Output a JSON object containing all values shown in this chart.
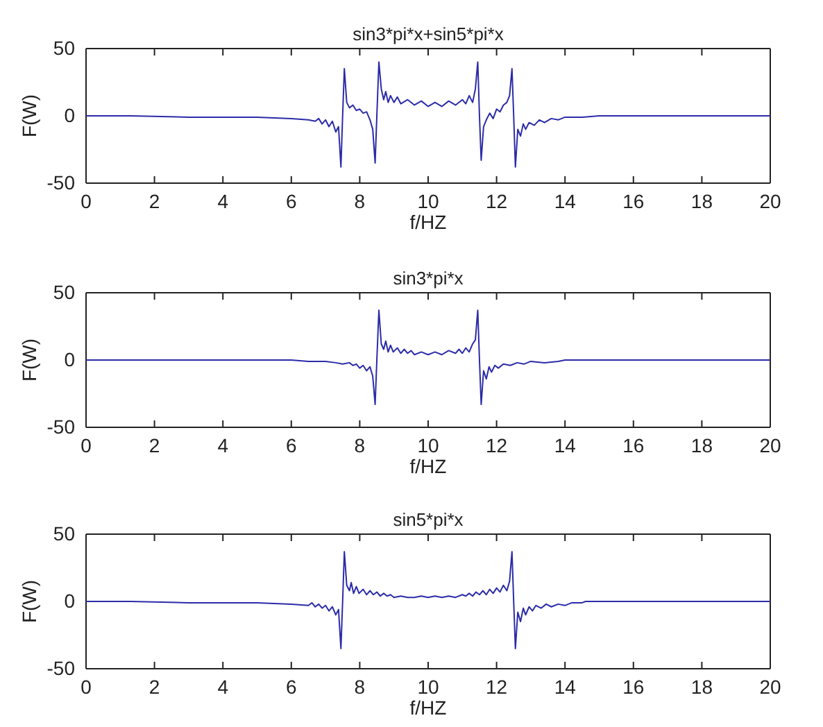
{
  "chart_data": [
    {
      "type": "line",
      "title": "sin3*pi*x+sin5*pi*x",
      "xlabel": "f/HZ",
      "ylabel": "F(W)",
      "xlim": [
        0,
        20
      ],
      "ylim": [
        -50,
        50
      ],
      "xticks": [
        0,
        2,
        4,
        6,
        8,
        10,
        12,
        14,
        16,
        18,
        20
      ],
      "yticks": [
        -50,
        0,
        50
      ],
      "grid": false,
      "marker": "none",
      "line_style": "solid",
      "series": [
        {
          "color": "#2b2ba8",
          "x": [
            0,
            1.3,
            3,
            5,
            6,
            6.5,
            6.7,
            6.8,
            6.9,
            7.0,
            7.1,
            7.2,
            7.3,
            7.38,
            7.45,
            7.5,
            7.55,
            7.62,
            7.7,
            7.8,
            7.9,
            8.0,
            8.1,
            8.2,
            8.3,
            8.38,
            8.45,
            8.5,
            8.56,
            8.63,
            8.7,
            8.76,
            8.83,
            8.9,
            9.0,
            9.1,
            9.2,
            9.4,
            9.6,
            9.8,
            10.0,
            10.2,
            10.4,
            10.6,
            10.8,
            11.0,
            11.1,
            11.2,
            11.3,
            11.38,
            11.45,
            11.5,
            11.55,
            11.62,
            11.7,
            11.8,
            11.9,
            12.0,
            12.1,
            12.2,
            12.3,
            12.38,
            12.45,
            12.5,
            12.55,
            12.62,
            12.7,
            12.78,
            12.85,
            12.95,
            13.1,
            13.25,
            13.4,
            13.6,
            13.8,
            14.0,
            14.5,
            15,
            20
          ],
          "values": [
            0,
            0,
            -1,
            -1,
            -2,
            -3,
            -4,
            -2,
            -6,
            -3,
            -8,
            -4,
            -12,
            -8,
            -38,
            0,
            35,
            10,
            6,
            8,
            4,
            5,
            2,
            3,
            -3,
            -10,
            -35,
            0,
            40,
            20,
            12,
            18,
            10,
            15,
            10,
            14,
            9,
            12,
            8,
            11,
            7,
            10,
            7,
            11,
            8,
            12,
            9,
            15,
            10,
            20,
            40,
            0,
            -33,
            -8,
            -3,
            2,
            -2,
            5,
            3,
            8,
            10,
            15,
            35,
            0,
            -38,
            -10,
            -15,
            -6,
            -10,
            -5,
            -7,
            -3,
            -5,
            -2,
            -3,
            -1,
            -1,
            0,
            0
          ]
        }
      ]
    },
    {
      "type": "line",
      "title": "sin3*pi*x",
      "xlabel": "f/HZ",
      "ylabel": "F(W)",
      "xlim": [
        0,
        20
      ],
      "ylim": [
        -50,
        50
      ],
      "xticks": [
        0,
        2,
        4,
        6,
        8,
        10,
        12,
        14,
        16,
        18,
        20
      ],
      "yticks": [
        -50,
        0,
        50
      ],
      "grid": false,
      "marker": "none",
      "line_style": "solid",
      "series": [
        {
          "color": "#2b2ba8",
          "x": [
            0,
            6.0,
            6.5,
            7.0,
            7.3,
            7.5,
            7.7,
            7.8,
            7.9,
            8.0,
            8.1,
            8.2,
            8.3,
            8.38,
            8.45,
            8.5,
            8.56,
            8.63,
            8.7,
            8.76,
            8.83,
            8.9,
            8.98,
            9.1,
            9.2,
            9.3,
            9.4,
            9.5,
            9.6,
            9.8,
            10.0,
            10.2,
            10.4,
            10.6,
            10.8,
            10.9,
            11.0,
            11.1,
            11.2,
            11.3,
            11.38,
            11.45,
            11.5,
            11.55,
            11.62,
            11.7,
            11.78,
            11.85,
            11.95,
            12.05,
            12.2,
            12.4,
            12.6,
            12.8,
            13.0,
            13.4,
            13.8,
            14.0,
            20
          ],
          "values": [
            0,
            0,
            -1,
            -1,
            -2,
            -3,
            -2,
            -4,
            -3,
            -6,
            -4,
            -8,
            -5,
            -12,
            -33,
            0,
            37,
            12,
            8,
            14,
            6,
            11,
            6,
            9,
            5,
            8,
            5,
            7,
            4,
            6,
            4,
            6,
            4,
            7,
            5,
            8,
            5,
            9,
            6,
            12,
            15,
            37,
            0,
            -33,
            -8,
            -14,
            -5,
            -9,
            -4,
            -6,
            -3,
            -4,
            -2,
            -3,
            -1,
            -2,
            -1,
            0,
            0
          ]
        }
      ]
    },
    {
      "type": "line",
      "title": "sin5*pi*x",
      "xlabel": "f/HZ",
      "ylabel": "F(W)",
      "xlim": [
        0,
        20
      ],
      "ylim": [
        -50,
        50
      ],
      "xticks": [
        0,
        2,
        4,
        6,
        8,
        10,
        12,
        14,
        16,
        18,
        20
      ],
      "yticks": [
        -50,
        0,
        50
      ],
      "grid": false,
      "marker": "none",
      "line_style": "solid",
      "series": [
        {
          "color": "#2b2ba8",
          "x": [
            0,
            1.3,
            3,
            5,
            6,
            6.5,
            6.6,
            6.7,
            6.8,
            6.9,
            7.0,
            7.1,
            7.2,
            7.3,
            7.38,
            7.45,
            7.5,
            7.55,
            7.62,
            7.7,
            7.75,
            7.82,
            7.9,
            7.98,
            8.1,
            8.2,
            8.3,
            8.4,
            8.5,
            8.6,
            8.7,
            8.8,
            8.9,
            9.0,
            9.2,
            9.4,
            9.6,
            9.8,
            10,
            10.2,
            10.4,
            10.6,
            10.8,
            11,
            11.1,
            11.2,
            11.3,
            11.4,
            11.5,
            11.6,
            11.7,
            11.8,
            11.9,
            12.0,
            12.1,
            12.2,
            12.3,
            12.38,
            12.45,
            12.5,
            12.55,
            12.62,
            12.7,
            12.78,
            12.85,
            12.95,
            13.05,
            13.15,
            13.3,
            13.45,
            13.6,
            13.8,
            14.0,
            14.2,
            14.5,
            14.6,
            20
          ],
          "values": [
            0,
            0,
            -1,
            -1,
            -2,
            -3,
            -1,
            -4,
            -2,
            -5,
            -3,
            -7,
            -4,
            -10,
            -6,
            -35,
            0,
            37,
            12,
            8,
            14,
            6,
            11,
            6,
            9,
            5,
            8,
            5,
            7,
            4,
            6,
            4,
            5,
            3,
            4,
            3,
            3,
            4,
            3,
            4,
            3,
            4,
            3,
            5,
            4,
            6,
            4,
            7,
            5,
            8,
            5,
            9,
            6,
            10,
            7,
            12,
            8,
            15,
            37,
            0,
            -35,
            -8,
            -15,
            -5,
            -10,
            -4,
            -7,
            -3,
            -5,
            -2,
            -4,
            -2,
            -3,
            -1,
            -1,
            0,
            0
          ]
        }
      ]
    }
  ]
}
